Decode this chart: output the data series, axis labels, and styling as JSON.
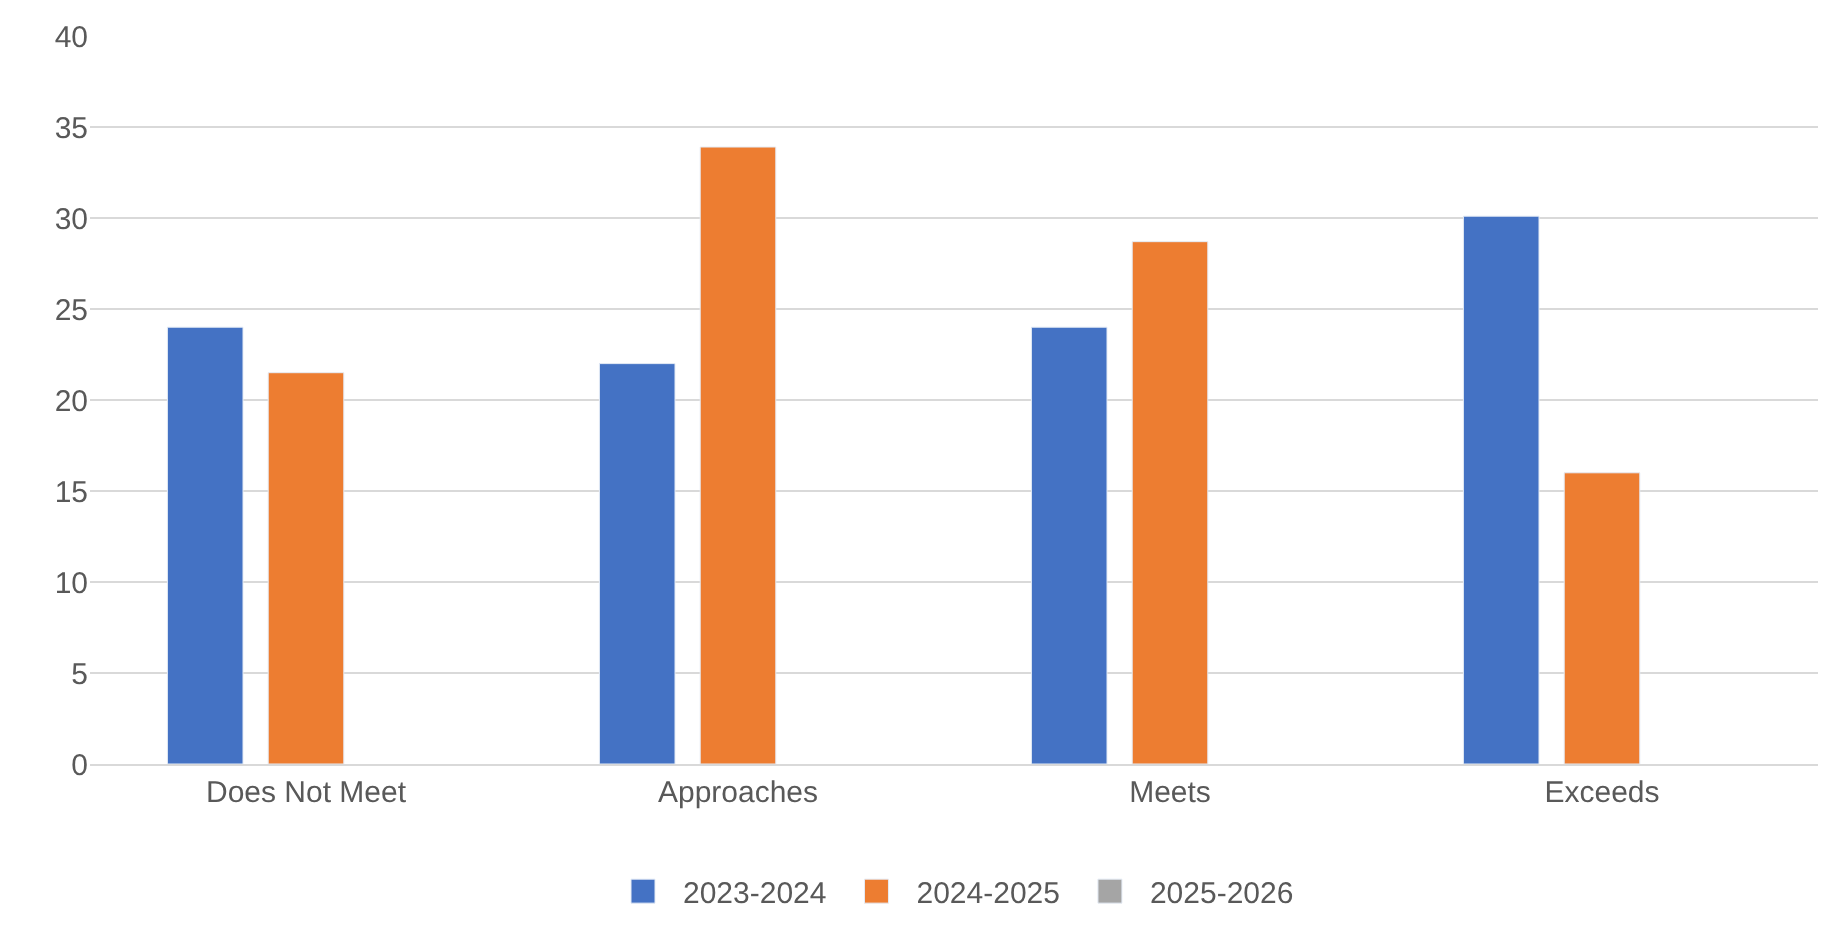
{
  "chart_data": {
    "type": "bar",
    "categories": [
      "Does Not Meet",
      "Approaches",
      "Meets",
      "Exceeds"
    ],
    "series": [
      {
        "name": "2023-2024",
        "color": "#4472c4",
        "values": [
          24,
          22,
          24,
          30.1
        ]
      },
      {
        "name": "2024-2025",
        "color": "#ed7d31",
        "values": [
          21.5,
          33.9,
          28.7,
          16
        ]
      },
      {
        "name": "2025-2026",
        "color": "#a5a5a5",
        "values": [
          null,
          null,
          null,
          null
        ]
      }
    ],
    "ylim": [
      0,
      40
    ],
    "yticks": [
      0,
      5,
      10,
      15,
      20,
      25,
      30,
      35,
      40
    ],
    "grid": "y",
    "legend": "bottom"
  }
}
